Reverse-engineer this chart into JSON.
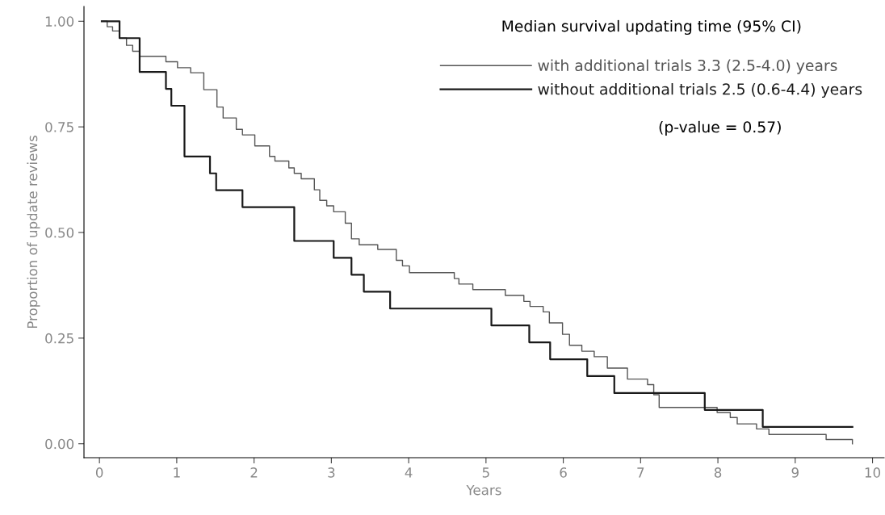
{
  "chart_data": {
    "type": "step",
    "xlabel": "Years",
    "ylabel": "Proportion of update reviews",
    "legend_title": "Median survival updating time (95% CI)",
    "annotations": [
      "(p-value = 0.57)"
    ],
    "xlim": [
      -0.2,
      10.15
    ],
    "ylim": [
      -0.033,
      1.035
    ],
    "xticks": [
      0,
      1,
      2,
      3,
      4,
      5,
      6,
      7,
      8,
      9,
      10
    ],
    "yticks": [
      {
        "value": 0,
        "label": "0.00"
      },
      {
        "value": 0.25,
        "label": "0.25"
      },
      {
        "value": 0.5,
        "label": "0.50"
      },
      {
        "value": 0.75,
        "label": "0.75"
      },
      {
        "value": 1,
        "label": "1.00"
      }
    ],
    "grid": false,
    "legend": "top right",
    "marker": "none",
    "line_style": "solid",
    "series": [
      {
        "name": "with additional trials 3.3 (2.5-4.0) years",
        "color": "#555555",
        "x": [
          0.03,
          0.1,
          0.17,
          0.26,
          0.35,
          0.43,
          0.52,
          0.86,
          1.01,
          1.18,
          1.35,
          1.52,
          1.6,
          1.77,
          1.85,
          2.01,
          2.2,
          2.27,
          2.45,
          2.52,
          2.61,
          2.78,
          2.85,
          2.94,
          3.03,
          3.18,
          3.26,
          3.36,
          3.6,
          3.84,
          3.92,
          4.01,
          4.59,
          4.65,
          4.83,
          5.25,
          5.49,
          5.57,
          5.74,
          5.82,
          5.99,
          6.08,
          6.24,
          6.4,
          6.57,
          6.83,
          7.09,
          7.17,
          7.24,
          7.99,
          8.16,
          8.25,
          8.5,
          8.66,
          9.4,
          9.74
        ],
        "values": [
          1.0,
          0.987,
          0.977,
          0.96,
          0.943,
          0.929,
          0.917,
          0.904,
          0.89,
          0.878,
          0.838,
          0.797,
          0.771,
          0.744,
          0.731,
          0.705,
          0.68,
          0.669,
          0.653,
          0.64,
          0.627,
          0.601,
          0.576,
          0.563,
          0.549,
          0.522,
          0.485,
          0.471,
          0.46,
          0.434,
          0.421,
          0.405,
          0.391,
          0.378,
          0.365,
          0.351,
          0.337,
          0.325,
          0.312,
          0.286,
          0.259,
          0.233,
          0.219,
          0.206,
          0.179,
          0.153,
          0.14,
          0.116,
          0.086,
          0.074,
          0.062,
          0.047,
          0.035,
          0.022,
          0.01,
          0.0
        ]
      },
      {
        "name": "without additional trials 2.5 (0.6-4.4) years",
        "color": "#1a1a1a",
        "x": [
          0.03,
          0.26,
          0.52,
          0.86,
          0.93,
          1.1,
          1.43,
          1.51,
          1.85,
          2.52,
          3.03,
          3.26,
          3.42,
          3.76,
          5.07,
          5.56,
          5.83,
          6.31,
          6.66,
          7.83,
          8.58,
          9.74
        ],
        "values": [
          1.0,
          0.96,
          0.88,
          0.84,
          0.8,
          0.68,
          0.64,
          0.6,
          0.56,
          0.48,
          0.44,
          0.4,
          0.36,
          0.32,
          0.28,
          0.24,
          0.2,
          0.16,
          0.12,
          0.08,
          0.04,
          0.04
        ]
      }
    ]
  }
}
